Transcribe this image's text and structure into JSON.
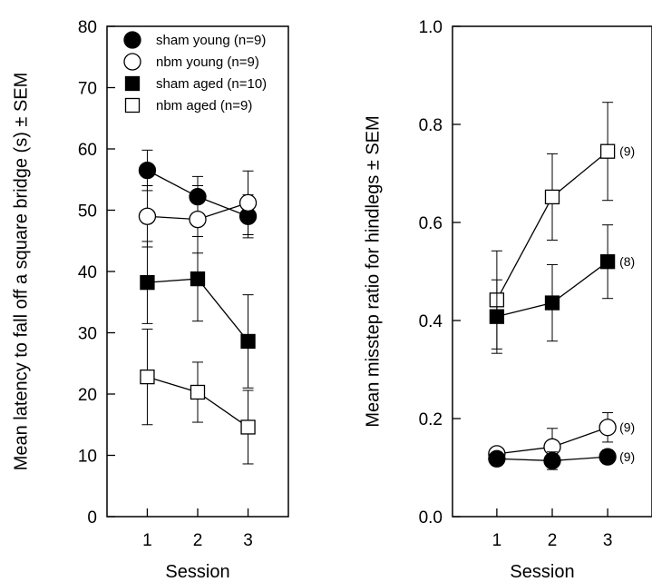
{
  "chart_data": [
    {
      "type": "line",
      "xlabel": "Session",
      "ylabel": "Mean latency to fall off a square bridge (s) ± SEM",
      "x": [
        1,
        2,
        3
      ],
      "xticks": [
        "1",
        "2",
        "3"
      ],
      "xlim": [
        0.2,
        3.8
      ],
      "ylim": [
        0,
        80
      ],
      "yticks": [
        "0",
        "10",
        "20",
        "30",
        "40",
        "50",
        "60",
        "70",
        "80"
      ],
      "grid": false,
      "legend_position": "top-left",
      "series": [
        {
          "name": "sham young (n=9)",
          "marker": "filled-circle",
          "values": [
            56.5,
            52.2,
            49.0
          ],
          "sem": [
            3.3,
            3.3,
            3.5
          ]
        },
        {
          "name": "nbm young (n=9)",
          "marker": "open-circle",
          "values": [
            49.0,
            48.5,
            51.2
          ],
          "sem": [
            5.0,
            5.5,
            5.2
          ]
        },
        {
          "name": "sham aged (n=10)",
          "marker": "filled-square",
          "values": [
            38.2,
            38.8,
            28.6
          ],
          "sem": [
            6.7,
            6.9,
            7.6
          ]
        },
        {
          "name": "nbm aged (n=9)",
          "marker": "open-square",
          "values": [
            22.8,
            20.3,
            14.6
          ],
          "sem": [
            7.8,
            4.9,
            6.0
          ]
        }
      ]
    },
    {
      "type": "line",
      "xlabel": "Session",
      "ylabel": "Mean misstep ratio for hindlegs ± SEM",
      "x": [
        1,
        2,
        3
      ],
      "xticks": [
        "1",
        "2",
        "3"
      ],
      "xlim": [
        0.2,
        3.8
      ],
      "ylim": [
        0,
        1.0
      ],
      "yticks": [
        "0.0",
        "0.2",
        "0.4",
        "0.6",
        "0.8",
        "1.0"
      ],
      "grid": false,
      "series": [
        {
          "marker": "open-square",
          "values": [
            0.442,
            0.652,
            0.745
          ],
          "sem": [
            0.1,
            0.088,
            0.1
          ],
          "end_label": "(9)"
        },
        {
          "marker": "filled-square",
          "values": [
            0.408,
            0.436,
            0.52
          ],
          "sem": [
            0.075,
            0.078,
            0.075
          ],
          "end_label": "(8)"
        },
        {
          "marker": "open-circle",
          "values": [
            0.128,
            0.142,
            0.182
          ],
          "sem": [
            0.012,
            0.038,
            0.03
          ],
          "end_label": "(9)"
        },
        {
          "marker": "filled-circle",
          "values": [
            0.118,
            0.114,
            0.122
          ],
          "sem": [
            0.01,
            0.018,
            0.014
          ],
          "end_label": "(9)"
        }
      ]
    }
  ]
}
